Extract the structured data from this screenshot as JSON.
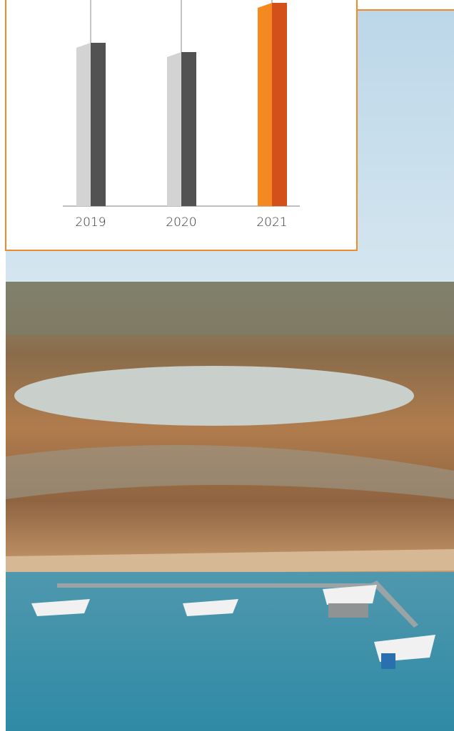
{
  "chart_data": {
    "type": "bar",
    "categories": [
      "2019",
      "2020",
      "2021"
    ],
    "values": [
      229,
      216,
      285
    ],
    "colors": [
      "#525252",
      "#525252",
      "#d4501a"
    ],
    "side_colors": [
      "#d3d3d3",
      "#d3d3d3",
      "#f5891f"
    ]
  }
}
